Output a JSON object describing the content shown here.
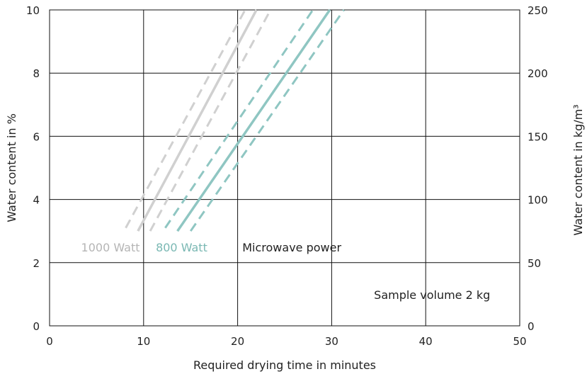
{
  "chart_data": {
    "type": "line",
    "xlabel": "Required drying time in minutes",
    "ylabel_left": "Water content in %",
    "ylabel_right": "Water content in kg/m³",
    "xlim": [
      0,
      50
    ],
    "ylim_left": [
      0,
      10
    ],
    "ylim_right": [
      0,
      250
    ],
    "x_ticks": [
      "0",
      "10",
      "20",
      "30",
      "40",
      "50"
    ],
    "y_ticks_left": [
      "0",
      "2",
      "4",
      "6",
      "8",
      "10"
    ],
    "y_ticks_right": [
      "0",
      "50",
      "100",
      "150",
      "200",
      "250"
    ],
    "grid": true,
    "series": [
      {
        "color": "#d0d0d0",
        "dash": false,
        "points": [
          [
            9.4,
            3.0
          ],
          [
            22.0,
            10.0
          ]
        ]
      },
      {
        "color": "#d0d0d0",
        "dash": true,
        "points": [
          [
            8.1,
            3.1
          ],
          [
            20.8,
            10.0
          ]
        ]
      },
      {
        "color": "#d0d0d0",
        "dash": true,
        "points": [
          [
            10.7,
            3.0
          ],
          [
            23.5,
            10.0
          ]
        ]
      },
      {
        "color": "#8fc6c2",
        "dash": false,
        "points": [
          [
            13.6,
            3.0
          ],
          [
            29.8,
            10.0
          ]
        ]
      },
      {
        "color": "#8fc6c2",
        "dash": true,
        "points": [
          [
            12.3,
            3.1
          ],
          [
            28.0,
            10.0
          ]
        ]
      },
      {
        "color": "#8fc6c2",
        "dash": true,
        "points": [
          [
            15.0,
            3.0
          ],
          [
            31.3,
            10.0
          ]
        ]
      }
    ],
    "annotations": [
      {
        "text": "1000 Watt",
        "x": 9.6,
        "y": 2.35,
        "color": "#b5b5b5",
        "anchor": "end"
      },
      {
        "text": "800 Watt",
        "x": 11.3,
        "y": 2.35,
        "color": "#7ab8b3",
        "anchor": "start"
      },
      {
        "text": "Microwave power",
        "x": 20.5,
        "y": 2.35,
        "color": "#222222",
        "anchor": "start"
      },
      {
        "text": "Sample volume 2 kg",
        "x": 34.5,
        "y": 0.85,
        "color": "#222222",
        "anchor": "start"
      }
    ]
  }
}
